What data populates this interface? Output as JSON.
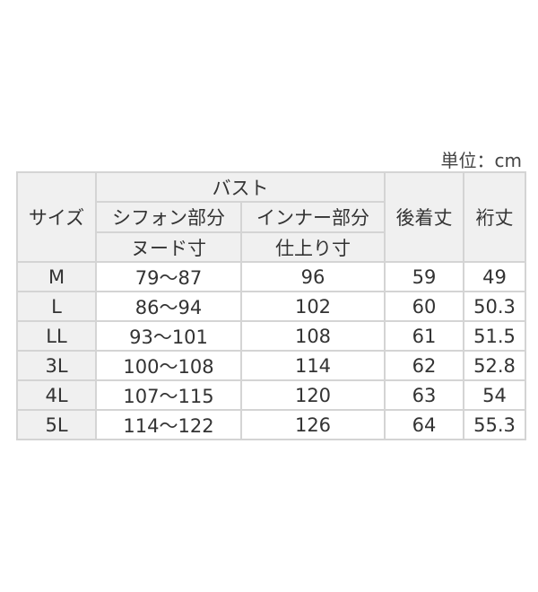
{
  "unit_label": "単位：cm",
  "header": {
    "size": "サイズ",
    "bust": "バスト",
    "chiffon": "シフォン部分",
    "inner": "インナー部分",
    "nude": "ヌード寸",
    "finished": "仕上り寸",
    "back_length": "後着丈",
    "sleeve_length": "裄丈"
  },
  "rows": [
    {
      "size": "M",
      "chiffon": "79〜87",
      "inner": "96",
      "back": "59",
      "sleeve": "49"
    },
    {
      "size": "L",
      "chiffon": "86〜94",
      "inner": "102",
      "back": "60",
      "sleeve": "50.3"
    },
    {
      "size": "LL",
      "chiffon": "93〜101",
      "inner": "108",
      "back": "61",
      "sleeve": "51.5"
    },
    {
      "size": "3L",
      "chiffon": "100〜108",
      "inner": "114",
      "back": "62",
      "sleeve": "52.8"
    },
    {
      "size": "4L",
      "chiffon": "107〜115",
      "inner": "120",
      "back": "63",
      "sleeve": "54"
    },
    {
      "size": "5L",
      "chiffon": "114〜122",
      "inner": "126",
      "back": "64",
      "sleeve": "55.3"
    }
  ]
}
